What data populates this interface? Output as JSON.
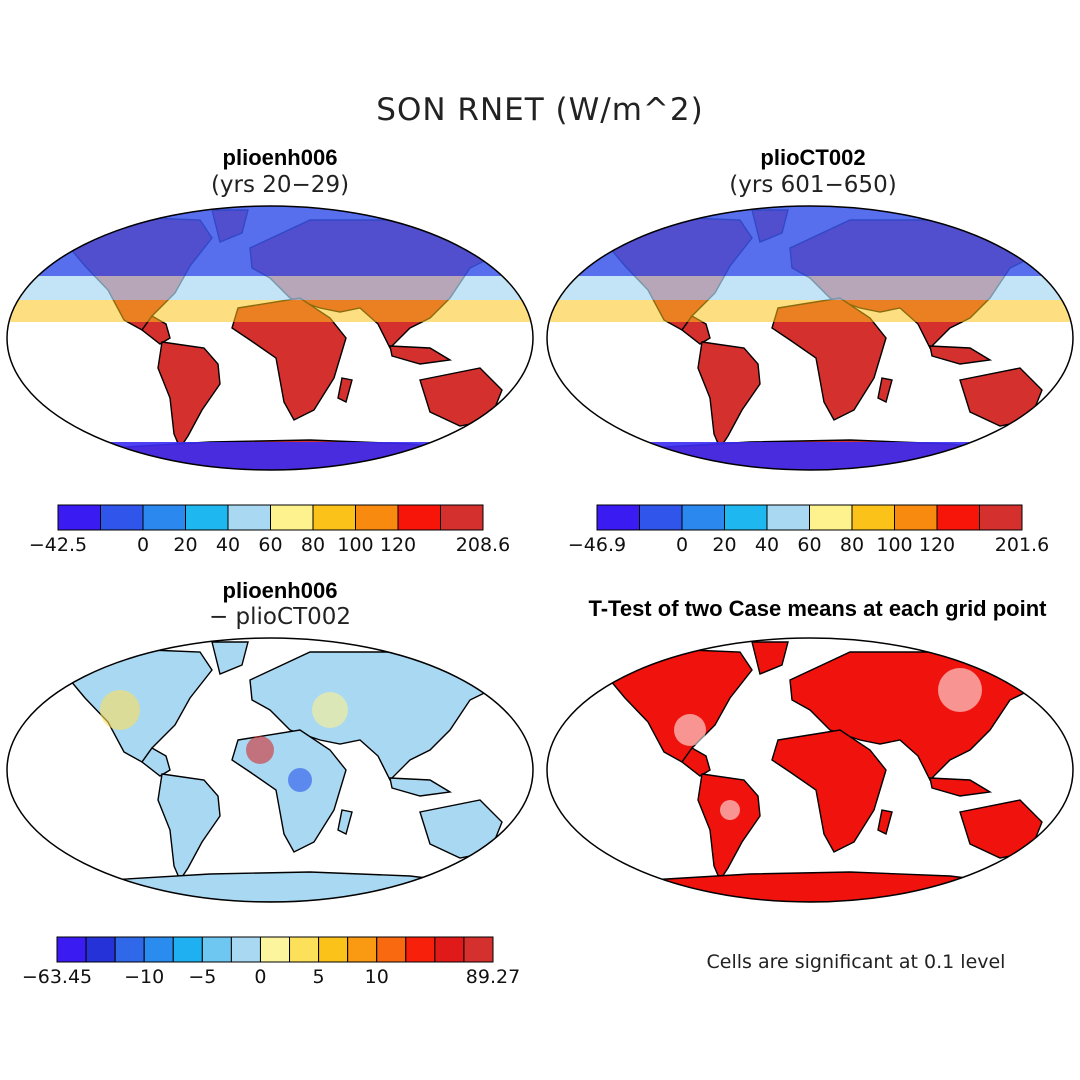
{
  "figure": {
    "title": "SON RNET (W/m^2)",
    "footnote": "Cells are significant at 0.1 level"
  },
  "panels": [
    {
      "id": "case1",
      "title": "plioenh006",
      "subtitle": "(yrs 20−29)",
      "colors": [
        "#3a1cf2",
        "#2f55ea",
        "#2a88ef",
        "#1eb7f0",
        "#a9d8f2",
        "#fdf28e",
        "#fbc21a",
        "#f98a10",
        "#f7150a",
        "#d4302e"
      ],
      "ticks": [
        {
          "label": "−42.5",
          "at": 0
        },
        {
          "label": "0",
          "at": 2
        },
        {
          "label": "20",
          "at": 3
        },
        {
          "label": "40",
          "at": 4
        },
        {
          "label": "60",
          "at": 5
        },
        {
          "label": "80",
          "at": 6
        },
        {
          "label": "100",
          "at": 7
        },
        {
          "label": "120",
          "at": 8
        },
        {
          "label": "208.6",
          "at": 10
        }
      ]
    },
    {
      "id": "case2",
      "title": "plioCT002",
      "subtitle": "(yrs 601−650)",
      "colors": [
        "#3a1cf2",
        "#2f55ea",
        "#2a88ef",
        "#1eb7f0",
        "#a9d8f2",
        "#fdf28e",
        "#fbc21a",
        "#f98a10",
        "#f7150a",
        "#d4302e"
      ],
      "ticks": [
        {
          "label": "−46.9",
          "at": 0
        },
        {
          "label": "0",
          "at": 2
        },
        {
          "label": "20",
          "at": 3
        },
        {
          "label": "40",
          "at": 4
        },
        {
          "label": "60",
          "at": 5
        },
        {
          "label": "80",
          "at": 6
        },
        {
          "label": "100",
          "at": 7
        },
        {
          "label": "120",
          "at": 8
        },
        {
          "label": "201.6",
          "at": 10
        }
      ]
    },
    {
      "id": "diff",
      "title": "plioenh006",
      "subtitle": "− plioCT002",
      "colors": [
        "#3a1cf2",
        "#2532d8",
        "#2f68e8",
        "#2a8cee",
        "#1eb0f0",
        "#6ec7f0",
        "#a9d8f2",
        "#fdf49e",
        "#fde05a",
        "#fbc21a",
        "#f99a12",
        "#f96a10",
        "#f7200a",
        "#e01a18",
        "#d4302e"
      ],
      "ticks": [
        {
          "label": "−63.45",
          "at": 0
        },
        {
          "label": "−10",
          "at": 3
        },
        {
          "label": "−5",
          "at": 5
        },
        {
          "label": "0",
          "at": 7
        },
        {
          "label": "5",
          "at": 9
        },
        {
          "label": "10",
          "at": 11
        },
        {
          "label": "89.27",
          "at": 15
        }
      ]
    },
    {
      "id": "ttest",
      "title": "T-Test of two Case means at each grid point",
      "subtitle": "",
      "colors": [
        "#f0120c"
      ],
      "ticks": []
    }
  ]
}
